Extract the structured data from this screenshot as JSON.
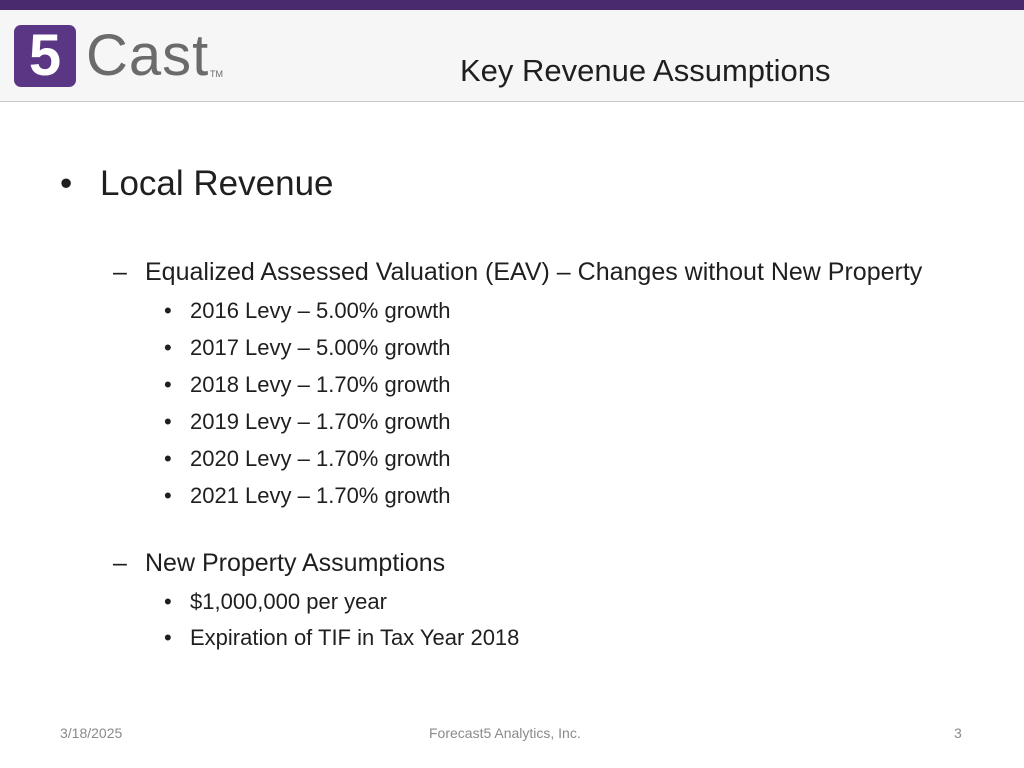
{
  "header": {
    "logo": {
      "mark": "5",
      "word": "Cast",
      "tm": "TM"
    },
    "title": "Key Revenue Assumptions"
  },
  "content": {
    "main_bullet": "Local Revenue",
    "sections": [
      {
        "heading": "Equalized Assessed Valuation (EAV) – Changes without New Property",
        "items": [
          "2016 Levy – 5.00% growth",
          "2017 Levy – 5.00% growth",
          "2018 Levy – 1.70% growth",
          "2019 Levy – 1.70% growth",
          "2020 Levy – 1.70% growth",
          "2021 Levy – 1.70% growth"
        ]
      },
      {
        "heading": "New Property Assumptions",
        "items": [
          "$1,000,000 per year",
          "Expiration of TIF in Tax Year 2018"
        ]
      }
    ]
  },
  "footer": {
    "date": "3/18/2025",
    "company": "Forecast5 Analytics, Inc.",
    "page": "3"
  },
  "colors": {
    "brand_purple": "#5b3685",
    "top_strip": "#4a2a6e",
    "logo_gray": "#6b6b6b"
  }
}
